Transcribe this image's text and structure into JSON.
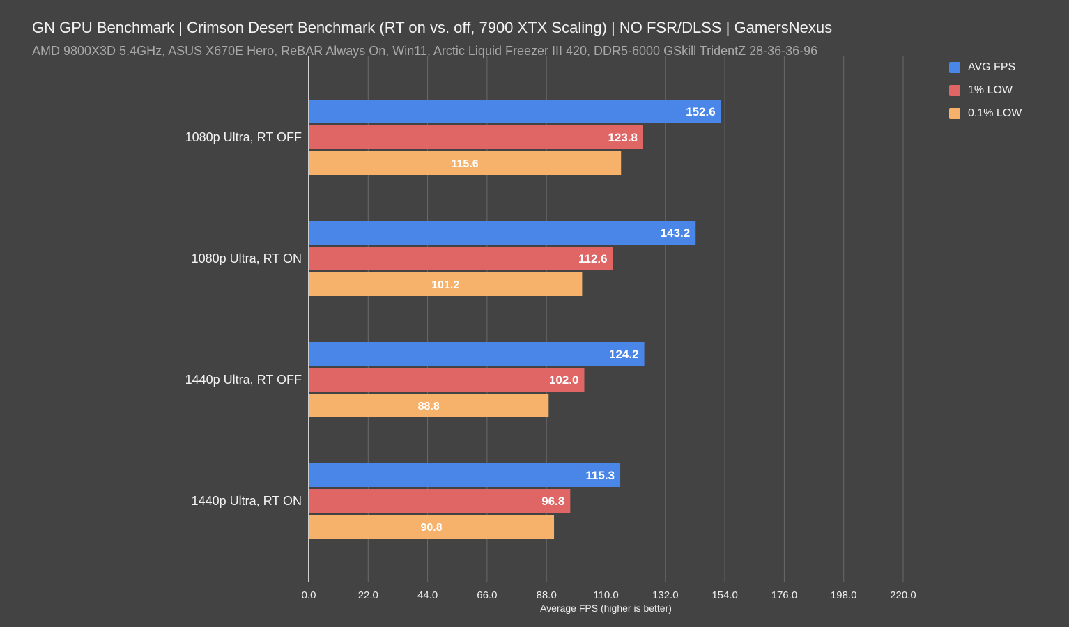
{
  "chart_data": {
    "type": "bar",
    "orientation": "horizontal",
    "title": "GN GPU Benchmark | Crimson Desert Benchmark (RT on vs. off, 7900 XTX Scaling) | NO FSR/DLSS | GamersNexus",
    "subtitle": "AMD 9800X3D 5.4GHz, ASUS X670E Hero, ReBAR Always On, Win11, Arctic Liquid Freezer III 420, DDR5-6000 GSkill TridentZ 28-36-36-96",
    "xlabel": "Average FPS (higher is better)",
    "ylabel": "",
    "xlim": [
      0,
      220
    ],
    "xticks": [
      "0.0",
      "22.0",
      "44.0",
      "66.0",
      "88.0",
      "110.0",
      "132.0",
      "154.0",
      "176.0",
      "198.0",
      "220.0"
    ],
    "grid": true,
    "legend_position": "top-right",
    "categories": [
      "1080p Ultra, RT OFF",
      "1080p Ultra, RT ON",
      "1440p Ultra, RT OFF",
      "1440p Ultra, RT ON"
    ],
    "series": [
      {
        "name": "AVG FPS",
        "color": "#4a86e8",
        "values": [
          152.6,
          143.2,
          124.2,
          115.3
        ]
      },
      {
        "name": "1% LOW",
        "color": "#e06666",
        "values": [
          123.8,
          112.6,
          102.0,
          96.8
        ]
      },
      {
        "name": "0.1% LOW",
        "color": "#f6b26b",
        "values": [
          115.6,
          101.2,
          88.8,
          90.8
        ]
      }
    ]
  }
}
